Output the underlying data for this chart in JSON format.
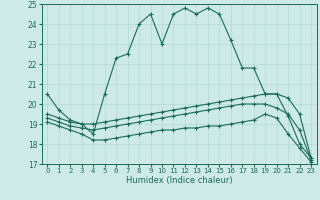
{
  "xlabel": "Humidex (Indice chaleur)",
  "xlim": [
    -0.5,
    23.5
  ],
  "ylim": [
    17,
    25
  ],
  "yticks": [
    17,
    18,
    19,
    20,
    21,
    22,
    23,
    24,
    25
  ],
  "xticks": [
    0,
    1,
    2,
    3,
    4,
    5,
    6,
    7,
    8,
    9,
    10,
    11,
    12,
    13,
    14,
    15,
    16,
    17,
    18,
    19,
    20,
    21,
    22,
    23
  ],
  "bg_color": "#ceeae7",
  "line_color": "#1a6b5a",
  "grid_color": "#b0d8d4",
  "line1": [
    20.5,
    19.7,
    19.2,
    19.0,
    18.5,
    20.5,
    22.3,
    22.5,
    24.0,
    24.5,
    23.0,
    24.5,
    24.8,
    24.5,
    24.8,
    24.5,
    23.2,
    21.8,
    21.8,
    20.5,
    20.5,
    19.4,
    18.0,
    17.3
  ],
  "line2": [
    19.5,
    19.3,
    19.1,
    19.0,
    19.0,
    19.1,
    19.2,
    19.3,
    19.4,
    19.5,
    19.6,
    19.7,
    19.8,
    19.9,
    20.0,
    20.1,
    20.2,
    20.3,
    20.4,
    20.5,
    20.5,
    20.3,
    19.5,
    17.3
  ],
  "line3": [
    19.3,
    19.1,
    18.9,
    18.8,
    18.7,
    18.8,
    18.9,
    19.0,
    19.1,
    19.2,
    19.3,
    19.4,
    19.5,
    19.6,
    19.7,
    19.8,
    19.9,
    20.0,
    20.0,
    20.0,
    19.8,
    19.5,
    18.7,
    17.2
  ],
  "line4": [
    19.1,
    18.9,
    18.7,
    18.5,
    18.2,
    18.2,
    18.3,
    18.4,
    18.5,
    18.6,
    18.7,
    18.7,
    18.8,
    18.8,
    18.9,
    18.9,
    19.0,
    19.1,
    19.2,
    19.5,
    19.3,
    18.5,
    17.8,
    17.1
  ]
}
